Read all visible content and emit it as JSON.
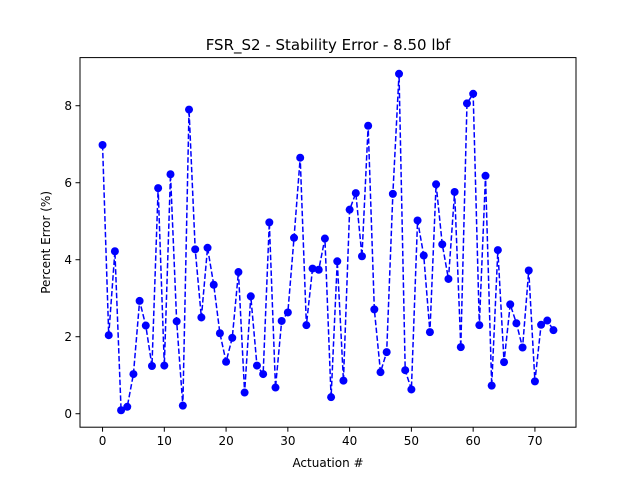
{
  "chart_data": {
    "type": "line",
    "title": "FSR_S2 - Stability Error - 8.50 lbf",
    "xlabel": "Actuation #",
    "ylabel": "Percent Error (%)",
    "xlim": [
      -3.65,
      76.65
    ],
    "ylim": [
      -0.35,
      9.25
    ],
    "xticks": [
      0,
      10,
      20,
      30,
      40,
      50,
      60,
      70
    ],
    "yticks": [
      0,
      2,
      4,
      6,
      8
    ],
    "grid": false,
    "legend": "none",
    "series": [
      {
        "color": "#0000ff",
        "line_style": "dashed",
        "marker": "circle",
        "x": [
          0,
          1,
          2,
          3,
          4,
          5,
          6,
          7,
          8,
          9,
          10,
          11,
          12,
          13,
          14,
          15,
          16,
          17,
          18,
          19,
          20,
          21,
          22,
          23,
          24,
          25,
          26,
          27,
          28,
          29,
          30,
          31,
          32,
          33,
          34,
          35,
          36,
          37,
          38,
          39,
          40,
          41,
          42,
          43,
          44,
          45,
          46,
          47,
          48,
          49,
          50,
          51,
          52,
          53,
          54,
          55,
          56,
          57,
          58,
          59,
          60,
          61,
          62,
          63,
          64,
          65,
          66,
          67,
          68,
          69,
          70,
          71,
          72,
          73
        ],
        "y": [
          6.98,
          2.04,
          4.22,
          0.09,
          0.18,
          1.03,
          2.93,
          2.29,
          1.24,
          5.86,
          1.25,
          6.22,
          2.4,
          0.21,
          7.9,
          4.27,
          2.5,
          4.31,
          3.35,
          2.09,
          1.35,
          1.97,
          3.68,
          0.55,
          3.05,
          1.25,
          1.03,
          4.97,
          0.68,
          2.41,
          2.63,
          4.57,
          6.65,
          2.3,
          3.77,
          3.74,
          4.55,
          0.43,
          3.96,
          0.86,
          5.3,
          5.73,
          4.09,
          7.48,
          2.71,
          1.08,
          1.6,
          5.71,
          8.83,
          1.13,
          0.63,
          5.02,
          4.11,
          2.12,
          5.96,
          4.4,
          3.5,
          5.76,
          1.73,
          8.06,
          8.31,
          2.3,
          6.18,
          0.73,
          4.25,
          1.34,
          2.84,
          2.35,
          1.72,
          3.72,
          0.84,
          2.31,
          2.42,
          2.17
        ]
      }
    ]
  }
}
